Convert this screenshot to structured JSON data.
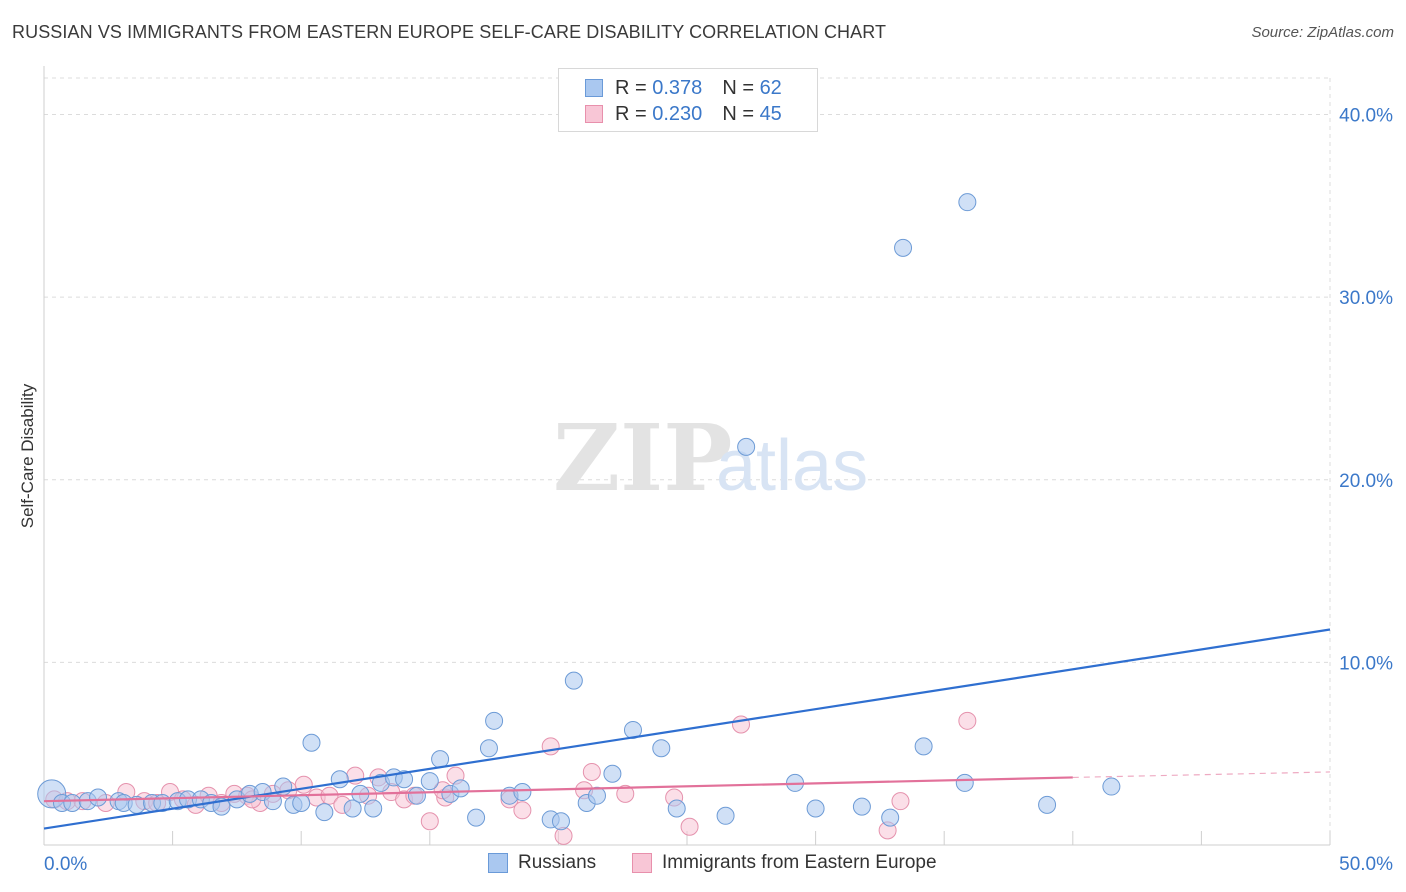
{
  "title": "RUSSIAN VS IMMIGRANTS FROM EASTERN EUROPE SELF-CARE DISABILITY CORRELATION CHART",
  "source": "Source: ZipAtlas.com",
  "watermark": {
    "zip": "ZIP",
    "atlas": "atlas"
  },
  "legend": {
    "rows": [
      {
        "r_label": "R = ",
        "r_value": "0.378",
        "n_label": "N = ",
        "n_value": "62",
        "color": "#aac8f0",
        "border": "#6a9ad8"
      },
      {
        "r_label": "R = ",
        "r_value": "0.230",
        "n_label": "N = ",
        "n_value": "45",
        "color": "#f8c6d6",
        "border": "#e890ac"
      }
    ]
  },
  "bottom_legend": {
    "items": [
      {
        "label": "Russians",
        "color": "#aac8f0",
        "border": "#6a9ad8"
      },
      {
        "label": "Immigrants from Eastern Europe",
        "color": "#f8c6d6",
        "border": "#e890ac"
      }
    ]
  },
  "colors": {
    "blue_fill": "#a9c7ef",
    "blue_stroke": "#6d9bd6",
    "blue_line": "#2f6fd0",
    "pink_fill": "#f7c4d5",
    "pink_stroke": "#e592ad",
    "pink_line": "#e2719a",
    "axis_text": "#3b78c9",
    "grid": "#dcdcdc"
  },
  "chart_data": {
    "type": "scatter",
    "title": "RUSSIAN VS IMMIGRANTS FROM EASTERN EUROPE SELF-CARE DISABILITY CORRELATION CHART",
    "xlabel": "",
    "ylabel": "Self-Care Disability",
    "xlim": [
      0,
      50
    ],
    "ylim": [
      0,
      42
    ],
    "x_tick_labels": [
      "0.0%",
      "50.0%"
    ],
    "y_ticks": [
      10,
      20,
      30,
      40
    ],
    "y_tick_labels": [
      "10.0%",
      "20.0%",
      "30.0%",
      "40.0%"
    ],
    "grid": true,
    "legend_position": "top-center",
    "series": [
      {
        "name": "Russians",
        "points": [
          [
            0.3,
            2.8
          ],
          [
            0.7,
            2.3
          ],
          [
            1.1,
            2.3
          ],
          [
            1.7,
            2.4
          ],
          [
            2.1,
            2.6
          ],
          [
            2.9,
            2.4
          ],
          [
            3.1,
            2.3
          ],
          [
            3.6,
            2.2
          ],
          [
            4.2,
            2.3
          ],
          [
            4.6,
            2.3
          ],
          [
            5.2,
            2.4
          ],
          [
            5.6,
            2.5
          ],
          [
            6.1,
            2.5
          ],
          [
            6.5,
            2.3
          ],
          [
            6.9,
            2.1
          ],
          [
            7.5,
            2.5
          ],
          [
            8.0,
            2.8
          ],
          [
            8.5,
            2.9
          ],
          [
            8.9,
            2.4
          ],
          [
            9.3,
            3.2
          ],
          [
            9.7,
            2.2
          ],
          [
            10.0,
            2.3
          ],
          [
            10.4,
            5.6
          ],
          [
            10.9,
            1.8
          ],
          [
            11.5,
            3.6
          ],
          [
            12.0,
            2.0
          ],
          [
            12.3,
            2.8
          ],
          [
            12.8,
            2.0
          ],
          [
            13.1,
            3.4
          ],
          [
            13.6,
            3.7
          ],
          [
            14.0,
            3.6
          ],
          [
            14.5,
            2.7
          ],
          [
            15.0,
            3.5
          ],
          [
            15.4,
            4.7
          ],
          [
            15.8,
            2.8
          ],
          [
            16.2,
            3.1
          ],
          [
            16.8,
            1.5
          ],
          [
            17.3,
            5.3
          ],
          [
            17.5,
            6.8
          ],
          [
            18.1,
            2.7
          ],
          [
            18.6,
            2.9
          ],
          [
            19.7,
            1.4
          ],
          [
            20.1,
            1.3
          ],
          [
            20.6,
            9.0
          ],
          [
            21.1,
            2.3
          ],
          [
            21.5,
            2.7
          ],
          [
            22.1,
            3.9
          ],
          [
            22.9,
            6.3
          ],
          [
            24.0,
            5.3
          ],
          [
            24.6,
            2.0
          ],
          [
            26.5,
            1.6
          ],
          [
            27.3,
            21.8
          ],
          [
            29.2,
            3.4
          ],
          [
            30.0,
            2.0
          ],
          [
            31.8,
            2.1
          ],
          [
            32.9,
            1.5
          ],
          [
            33.4,
            32.7
          ],
          [
            34.2,
            5.4
          ],
          [
            35.8,
            3.4
          ],
          [
            35.9,
            35.2
          ],
          [
            39.0,
            2.2
          ],
          [
            41.5,
            3.2
          ]
        ],
        "trend": {
          "x": [
            0,
            50
          ],
          "y": [
            0.9,
            11.8
          ]
        }
      },
      {
        "name": "Immigrants from Eastern Europe",
        "points": [
          [
            0.4,
            2.5
          ],
          [
            0.9,
            2.4
          ],
          [
            1.5,
            2.4
          ],
          [
            2.4,
            2.3
          ],
          [
            3.2,
            2.9
          ],
          [
            3.9,
            2.4
          ],
          [
            4.4,
            2.3
          ],
          [
            4.9,
            2.9
          ],
          [
            5.4,
            2.5
          ],
          [
            5.9,
            2.2
          ],
          [
            6.4,
            2.7
          ],
          [
            6.9,
            2.3
          ],
          [
            7.4,
            2.8
          ],
          [
            7.9,
            2.7
          ],
          [
            8.4,
            2.3
          ],
          [
            8.9,
            2.8
          ],
          [
            9.5,
            3.0
          ],
          [
            10.1,
            3.3
          ],
          [
            10.6,
            2.6
          ],
          [
            11.1,
            2.7
          ],
          [
            11.6,
            2.2
          ],
          [
            12.1,
            3.8
          ],
          [
            12.6,
            2.7
          ],
          [
            13.0,
            3.7
          ],
          [
            13.5,
            2.9
          ],
          [
            14.0,
            2.5
          ],
          [
            14.4,
            2.7
          ],
          [
            15.0,
            1.3
          ],
          [
            15.6,
            2.6
          ],
          [
            16.0,
            3.8
          ],
          [
            18.1,
            2.5
          ],
          [
            18.6,
            1.9
          ],
          [
            19.7,
            5.4
          ],
          [
            20.2,
            0.5
          ],
          [
            21.0,
            3.0
          ],
          [
            21.3,
            4.0
          ],
          [
            22.6,
            2.8
          ],
          [
            24.5,
            2.6
          ],
          [
            25.1,
            1.0
          ],
          [
            27.1,
            6.6
          ],
          [
            32.8,
            0.8
          ],
          [
            33.3,
            2.4
          ],
          [
            35.9,
            6.8
          ],
          [
            15.5,
            3.0
          ],
          [
            8.1,
            2.5
          ]
        ],
        "trend": {
          "x": [
            0,
            40
          ],
          "y": [
            2.4,
            3.7
          ]
        },
        "trend_dashed": {
          "x": [
            40,
            50
          ],
          "y": [
            3.7,
            4.0
          ]
        }
      }
    ]
  }
}
